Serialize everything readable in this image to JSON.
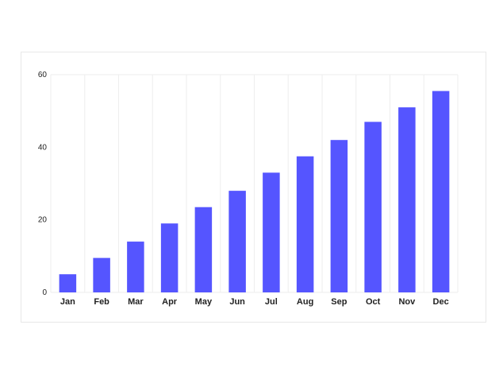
{
  "chart_data": {
    "type": "bar",
    "categories": [
      "Jan",
      "Feb",
      "Mar",
      "Apr",
      "May",
      "Jun",
      "Jul",
      "Aug",
      "Sep",
      "Oct",
      "Nov",
      "Dec"
    ],
    "values": [
      5,
      9.5,
      14,
      19,
      23.5,
      28,
      33,
      37.5,
      42,
      47,
      51,
      55.5
    ],
    "yticks": [
      "0",
      "20",
      "40",
      "60"
    ],
    "ylim": [
      0,
      60
    ],
    "title": "",
    "xlabel": "",
    "ylabel": "",
    "grid": "vertical",
    "legend": "none",
    "bar_color": "#5555ff",
    "grid_color": "#eeeeee"
  }
}
